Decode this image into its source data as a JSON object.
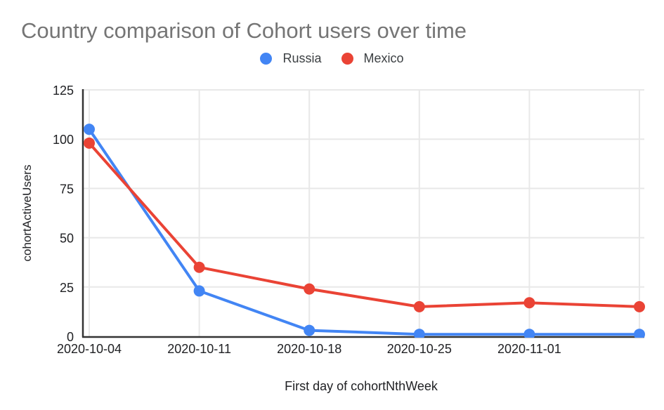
{
  "title": {
    "text": "Country comparison of Cohort users over time",
    "color": "#757575"
  },
  "legend": {
    "items": [
      {
        "label": "Russia",
        "color": "#4285f4"
      },
      {
        "label": "Mexico",
        "color": "#ea4335"
      }
    ]
  },
  "chart_data": {
    "type": "line",
    "title": "Country comparison of Cohort users over time",
    "xlabel": "First day of cohortNthWeek",
    "ylabel": "cohortActiveUsers",
    "categories": [
      "2020-10-04",
      "2020-10-11",
      "2020-10-18",
      "2020-10-25",
      "2020-11-01",
      ""
    ],
    "series": [
      {
        "name": "Russia",
        "color": "#4285f4",
        "values": [
          105,
          23,
          3,
          1,
          1,
          1
        ]
      },
      {
        "name": "Mexico",
        "color": "#ea4335",
        "values": [
          98,
          35,
          24,
          15,
          17,
          15
        ]
      }
    ],
    "ylim": [
      0,
      125
    ],
    "yticks": [
      0,
      25,
      50,
      75,
      100,
      125
    ],
    "grid": true,
    "legend_position": "top"
  },
  "colors": {
    "grid": "#e8e8e8",
    "axis": "#333333",
    "tick_text": "#202124",
    "axis_title_text": "#202124"
  }
}
